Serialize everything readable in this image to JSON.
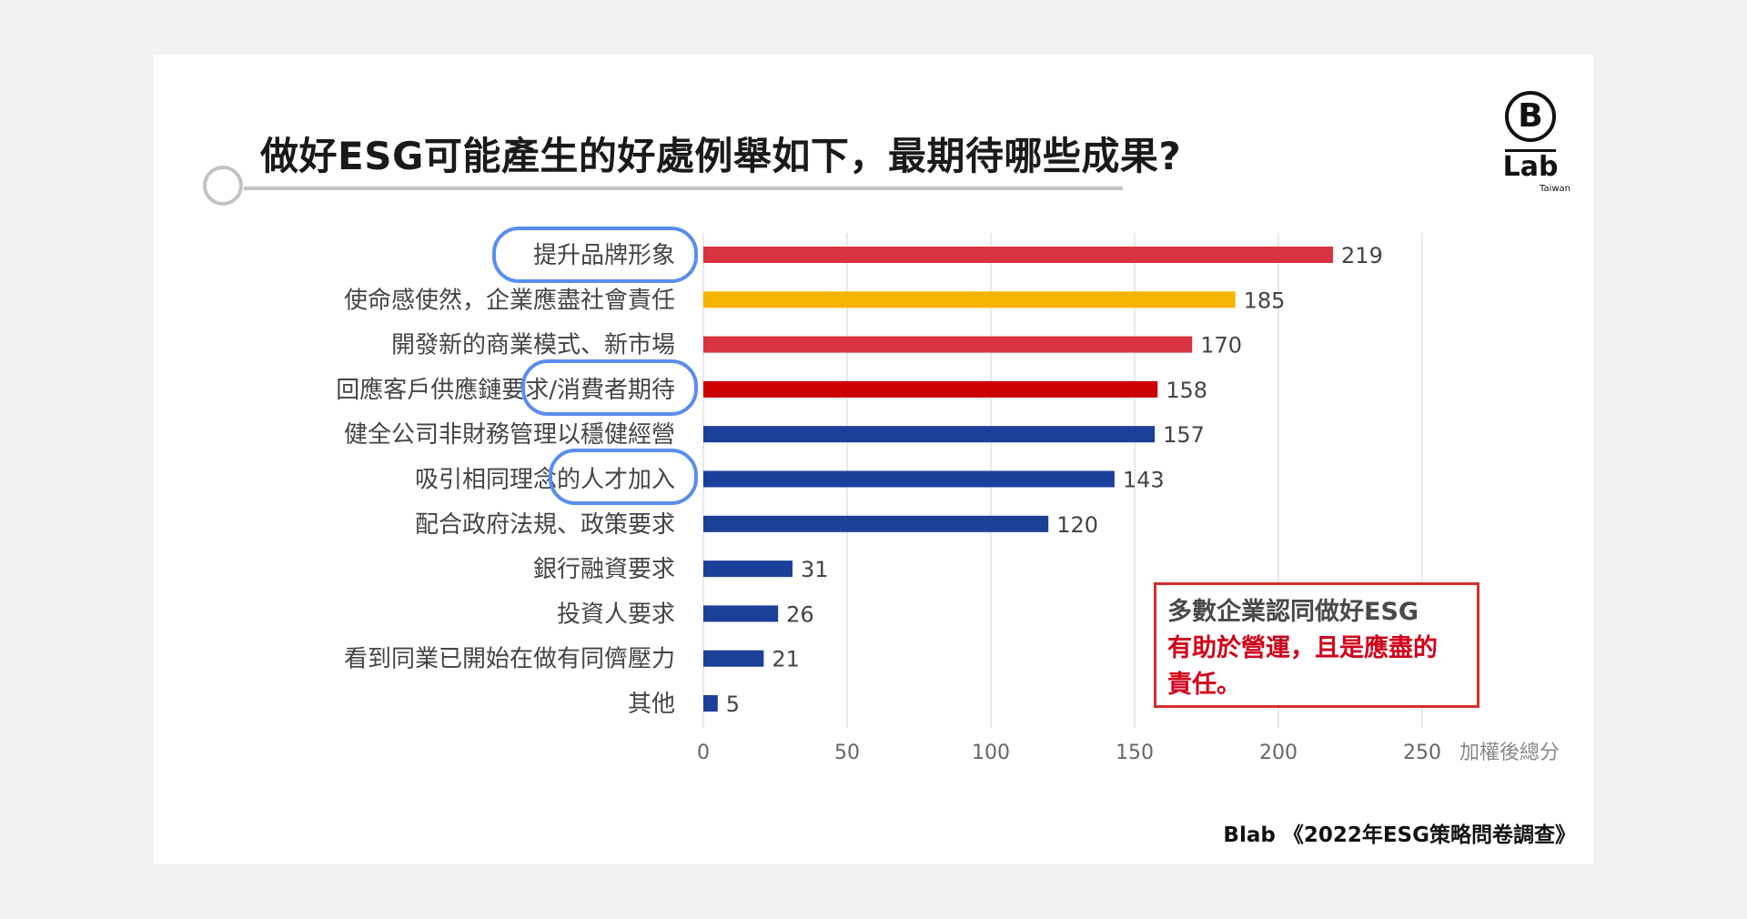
{
  "title": "做好ESG可能產生的好處例舉如下，最期待哪些成果?",
  "logo": {
    "letter": "B",
    "word": "Lab",
    "region": "Taiwan"
  },
  "callout": {
    "line1": "多數企業認同做好ESG",
    "line2": "有助於營運，且是應盡的",
    "line3": "責任。"
  },
  "source": "Blab 《2022年ESG策略問卷調查》",
  "chart_data": {
    "type": "bar",
    "orientation": "horizontal",
    "title": "做好ESG可能產生的好處例舉如下，最期待哪些成果?",
    "xlabel": "加權後總分",
    "xlim": [
      0,
      250
    ],
    "xticks": [
      0,
      50,
      100,
      150,
      200,
      250
    ],
    "grid": true,
    "categories": [
      "提升品牌形象",
      "使命感使然，企業應盡社會責任",
      "開發新的商業模式、新市場",
      "回應客戶供應鏈要求/消費者期待",
      "健全公司非財務管理以穩健經營",
      "吸引相同理念的人才加入",
      "配合政府法規、政策要求",
      "銀行融資要求",
      "投資人要求",
      "看到同業已開始在做有同儕壓力",
      "其他"
    ],
    "values": [
      219,
      185,
      170,
      158,
      157,
      143,
      120,
      31,
      26,
      21,
      5
    ],
    "bar_colors": [
      "#d93240",
      "#f5b400",
      "#d93240",
      "#cc0000",
      "#1c3f99",
      "#1c3f99",
      "#1c3f99",
      "#1c3f99",
      "#1c3f99",
      "#1c3f99",
      "#1c3f99"
    ],
    "highlighted": [
      "提升品牌形象",
      "消費者期待",
      "人才加入"
    ],
    "highlight_color": "#5b8def"
  }
}
